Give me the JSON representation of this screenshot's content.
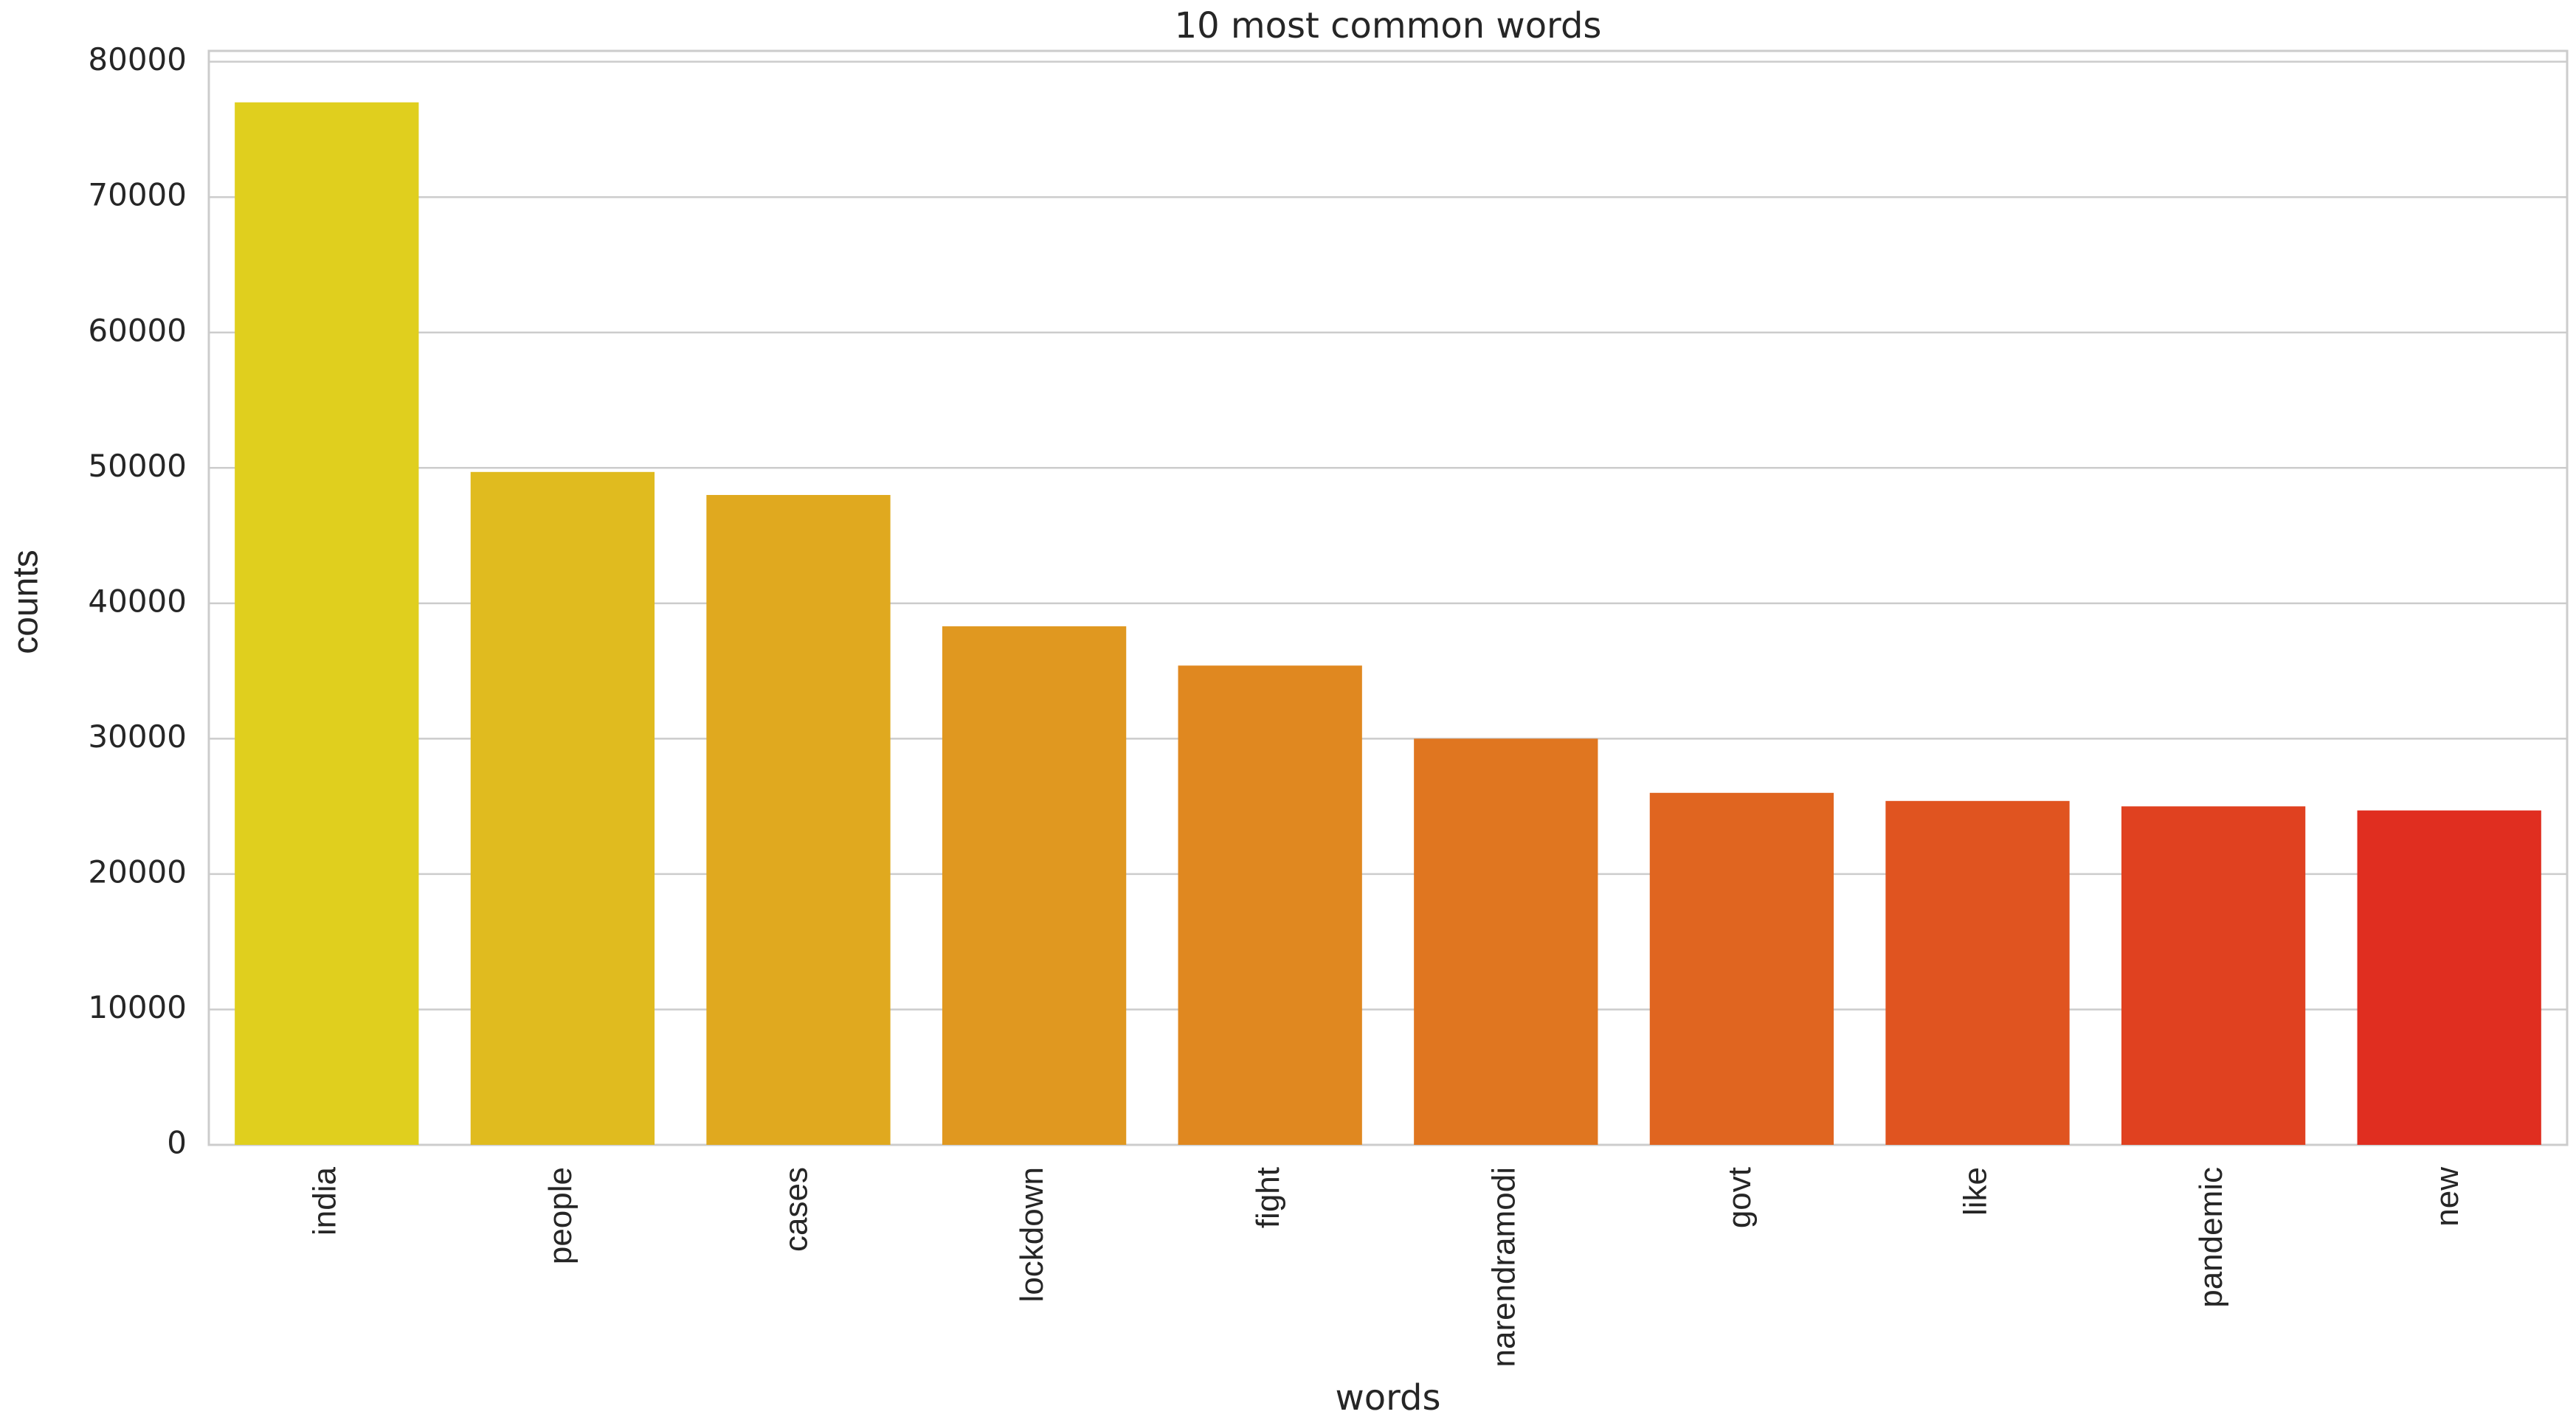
{
  "chart_data": {
    "type": "bar",
    "title": "10 most common words",
    "x_label": "words",
    "y_label": "counts",
    "categories": [
      "india",
      "people",
      "cases",
      "lockdown",
      "fight",
      "narendramodi",
      "govt",
      "like",
      "pandemic",
      "new"
    ],
    "values": [
      77000,
      49700,
      48000,
      38300,
      35400,
      30000,
      26000,
      25400,
      25000,
      24700
    ],
    "colors": [
      "#e0cf1e",
      "#e0bb1f",
      "#e0a91f",
      "#e09820",
      "#e08820",
      "#e07620",
      "#e06520",
      "#e05420",
      "#e04120",
      "#e02e20"
    ],
    "ylim": [
      0,
      80800
    ],
    "yticks": [
      0,
      10000,
      20000,
      30000,
      40000,
      50000,
      60000,
      70000,
      80000
    ],
    "grid": true
  }
}
